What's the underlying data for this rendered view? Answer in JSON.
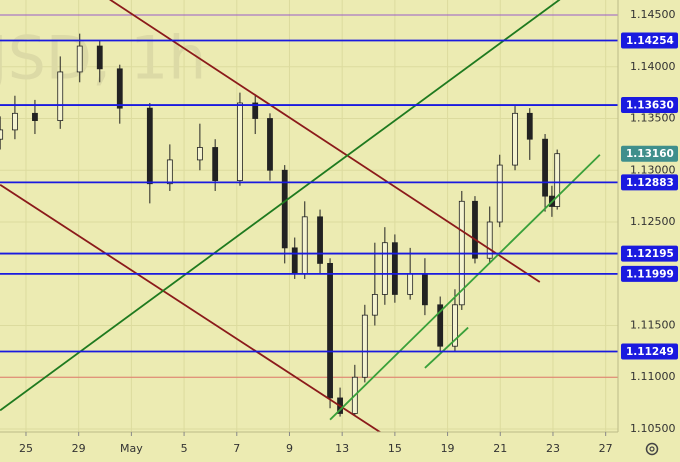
{
  "chart_data": {
    "type": "candlestick",
    "watermark": "JSD, 1h",
    "background": "#ecebb2",
    "grid": true,
    "xlim": [
      -0.493,
      11.234
    ],
    "ylim": [
      1.10471,
      1.14645
    ],
    "xticks": [
      {
        "value": 0,
        "label": "25"
      },
      {
        "value": 1,
        "label": "29"
      },
      {
        "value": 2,
        "label": "May"
      },
      {
        "value": 3,
        "label": "5"
      },
      {
        "value": 4,
        "label": "7"
      },
      {
        "value": 5,
        "label": "9"
      },
      {
        "value": 6,
        "label": "13"
      },
      {
        "value": 7,
        "label": "15"
      },
      {
        "value": 8,
        "label": "19"
      },
      {
        "value": 9,
        "label": "21"
      },
      {
        "value": 10,
        "label": "23"
      },
      {
        "value": 11,
        "label": "27"
      }
    ],
    "yticks": [
      {
        "value": 1.145,
        "label": "1.14500"
      },
      {
        "value": 1.14,
        "label": "1.14000"
      },
      {
        "value": 1.135,
        "label": "1.13500"
      },
      {
        "value": 1.13,
        "label": "1.13000"
      },
      {
        "value": 1.125,
        "label": "1.12500"
      },
      {
        "value": 1.115,
        "label": "1.11500"
      },
      {
        "value": 1.11,
        "label": "1.11000"
      },
      {
        "value": 1.105,
        "label": "1.10500"
      }
    ],
    "candles": {
      "x": [
        -0.49,
        -0.21,
        0.17,
        0.65,
        1.02,
        1.4,
        1.78,
        2.35,
        2.73,
        3.3,
        3.59,
        4.06,
        4.35,
        4.63,
        4.91,
        5.1,
        5.29,
        5.58,
        5.77,
        5.96,
        6.24,
        6.43,
        6.62,
        6.81,
        7.0,
        7.29,
        7.57,
        7.86,
        8.14,
        8.27,
        8.52,
        8.8,
        8.99,
        9.28,
        9.56,
        9.85,
        9.98,
        10.08
      ],
      "open": [
        1.133,
        1.1339,
        1.1355,
        1.1348,
        1.1395,
        1.142,
        1.1398,
        1.136,
        1.1287,
        1.131,
        1.1322,
        1.129,
        1.1365,
        1.135,
        1.13,
        1.1225,
        1.12,
        1.1255,
        1.121,
        1.108,
        1.1065,
        1.11,
        1.116,
        1.118,
        1.123,
        1.118,
        1.12,
        1.117,
        1.113,
        1.117,
        1.127,
        1.1215,
        1.125,
        1.1305,
        1.1355,
        1.133,
        1.1275,
        1.1265
      ],
      "high": [
        1.1352,
        1.1372,
        1.1368,
        1.141,
        1.1432,
        1.1425,
        1.1402,
        1.1365,
        1.1325,
        1.1345,
        1.133,
        1.1375,
        1.1372,
        1.1355,
        1.1305,
        1.1235,
        1.127,
        1.1262,
        1.1215,
        1.109,
        1.1112,
        1.117,
        1.123,
        1.1245,
        1.1238,
        1.1225,
        1.1215,
        1.1178,
        1.1185,
        1.128,
        1.1275,
        1.1265,
        1.1315,
        1.1362,
        1.136,
        1.1335,
        1.1285,
        1.132
      ],
      "low": [
        1.132,
        1.133,
        1.1335,
        1.134,
        1.1385,
        1.1385,
        1.1345,
        1.1268,
        1.128,
        1.13,
        1.128,
        1.1285,
        1.1335,
        1.129,
        1.121,
        1.1195,
        1.1195,
        1.12,
        1.107,
        1.1062,
        1.1063,
        1.1095,
        1.115,
        1.117,
        1.1172,
        1.1175,
        1.116,
        1.1125,
        1.1125,
        1.1165,
        1.121,
        1.121,
        1.1245,
        1.13,
        1.131,
        1.126,
        1.1255,
        1.1262
      ],
      "close": [
        1.1339,
        1.1355,
        1.1348,
        1.1395,
        1.142,
        1.1398,
        1.136,
        1.1287,
        1.131,
        1.1322,
        1.129,
        1.1365,
        1.135,
        1.13,
        1.1225,
        1.12,
        1.1255,
        1.121,
        1.108,
        1.1065,
        1.11,
        1.116,
        1.118,
        1.123,
        1.118,
        1.12,
        1.117,
        1.113,
        1.117,
        1.127,
        1.1215,
        1.125,
        1.1305,
        1.1355,
        1.133,
        1.1275,
        1.1265,
        1.1316
      ]
    },
    "thin_lines": [
      {
        "value": 1.145,
        "color": "#9a5cc8"
      },
      {
        "value": 1.11,
        "color": "#e07a6a"
      }
    ],
    "levels": [
      {
        "value": 1.14254,
        "label": "1.14254",
        "color": "#1a1adf"
      },
      {
        "value": 1.1363,
        "label": "1.13630",
        "color": "#1a1adf"
      },
      {
        "value": 1.12883,
        "label": "1.12883",
        "color": "#1a1adf"
      },
      {
        "value": 1.12195,
        "label": "1.12195",
        "color": "#1a1adf"
      },
      {
        "value": 1.11999,
        "label": "1.11999",
        "color": "#1a1adf"
      },
      {
        "value": 1.11249,
        "label": "1.11249",
        "color": "#1a1adf"
      }
    ],
    "last_price": {
      "value": 1.1316,
      "label": "1.13160",
      "color": "#3f8f8c"
    },
    "trendlines": [
      {
        "color": "#8b1a1a",
        "x": [
          1.59,
          9.75
        ],
        "y": [
          1.1465,
          1.1192
        ]
      },
      {
        "color": "#8b1a1a",
        "x": [
          -0.49,
          6.81
        ],
        "y": [
          1.1286,
          1.1044
        ]
      },
      {
        "color": "#1f7a1f",
        "x": [
          -0.49,
          10.13
        ],
        "y": [
          1.1068,
          1.1465
        ]
      },
      {
        "color": "#3aa03a",
        "x": [
          5.77,
          10.89
        ],
        "y": [
          1.1059,
          1.1315
        ]
      },
      {
        "color": "#3aa03a",
        "x": [
          7.57,
          8.39
        ],
        "y": [
          1.1109,
          1.1148
        ]
      }
    ]
  }
}
